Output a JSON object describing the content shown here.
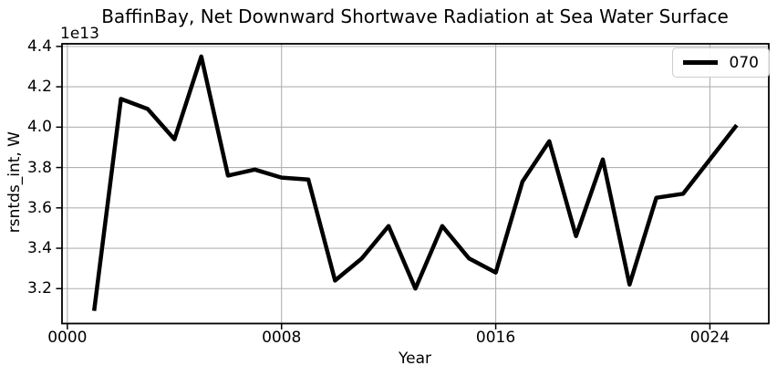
{
  "title": "BaffinBay, Net Downward Shortwave Radiation at Sea Water Surface",
  "axes": {
    "xlabel": "Year",
    "ylabel": "rsntds_int, W",
    "offset_text": "1e13"
  },
  "legend": {
    "position": "upper right",
    "items": [
      {
        "label": "070",
        "color": "#000000"
      }
    ]
  },
  "colors": {
    "line": "#000000",
    "grid": "#b0b0b0",
    "spine": "#000000",
    "background": "#ffffff",
    "legend_border": "#cccccc",
    "text": "#000000"
  },
  "chart_data": {
    "type": "line",
    "title": "BaffinBay, Net Downward Shortwave Radiation at Sea Water Surface",
    "xlabel": "Year",
    "ylabel": "rsntds_int, W",
    "y_scale_factor": "1e13",
    "grid": true,
    "legend_position": "upper right",
    "x": [
      1,
      2,
      3,
      4,
      5,
      6,
      7,
      8,
      9,
      10,
      11,
      12,
      13,
      14,
      15,
      16,
      17,
      18,
      19,
      20,
      21,
      22,
      23,
      24,
      25
    ],
    "series": [
      {
        "name": "070",
        "color": "#000000",
        "linewidth": 4.5,
        "values": [
          3.09,
          4.14,
          4.09,
          3.94,
          4.35,
          3.76,
          3.79,
          3.75,
          3.74,
          3.24,
          3.35,
          3.51,
          3.2,
          3.51,
          3.35,
          3.28,
          3.73,
          3.93,
          3.46,
          3.84,
          3.22,
          3.65,
          3.67,
          3.84,
          4.01
        ]
      }
    ],
    "xlim": [
      -0.2,
      26.2
    ],
    "ylim": [
      3.027,
      4.413
    ],
    "x_tick_values": [
      0,
      8,
      16,
      24
    ],
    "x_tick_labels": [
      "0000",
      "0008",
      "0016",
      "0024"
    ],
    "y_tick_values": [
      3.2,
      3.4,
      3.6,
      3.8,
      4.0,
      4.2,
      4.4
    ],
    "y_tick_labels": [
      "3.2",
      "3.4",
      "3.6",
      "3.8",
      "4.0",
      "4.2",
      "4.4"
    ]
  }
}
